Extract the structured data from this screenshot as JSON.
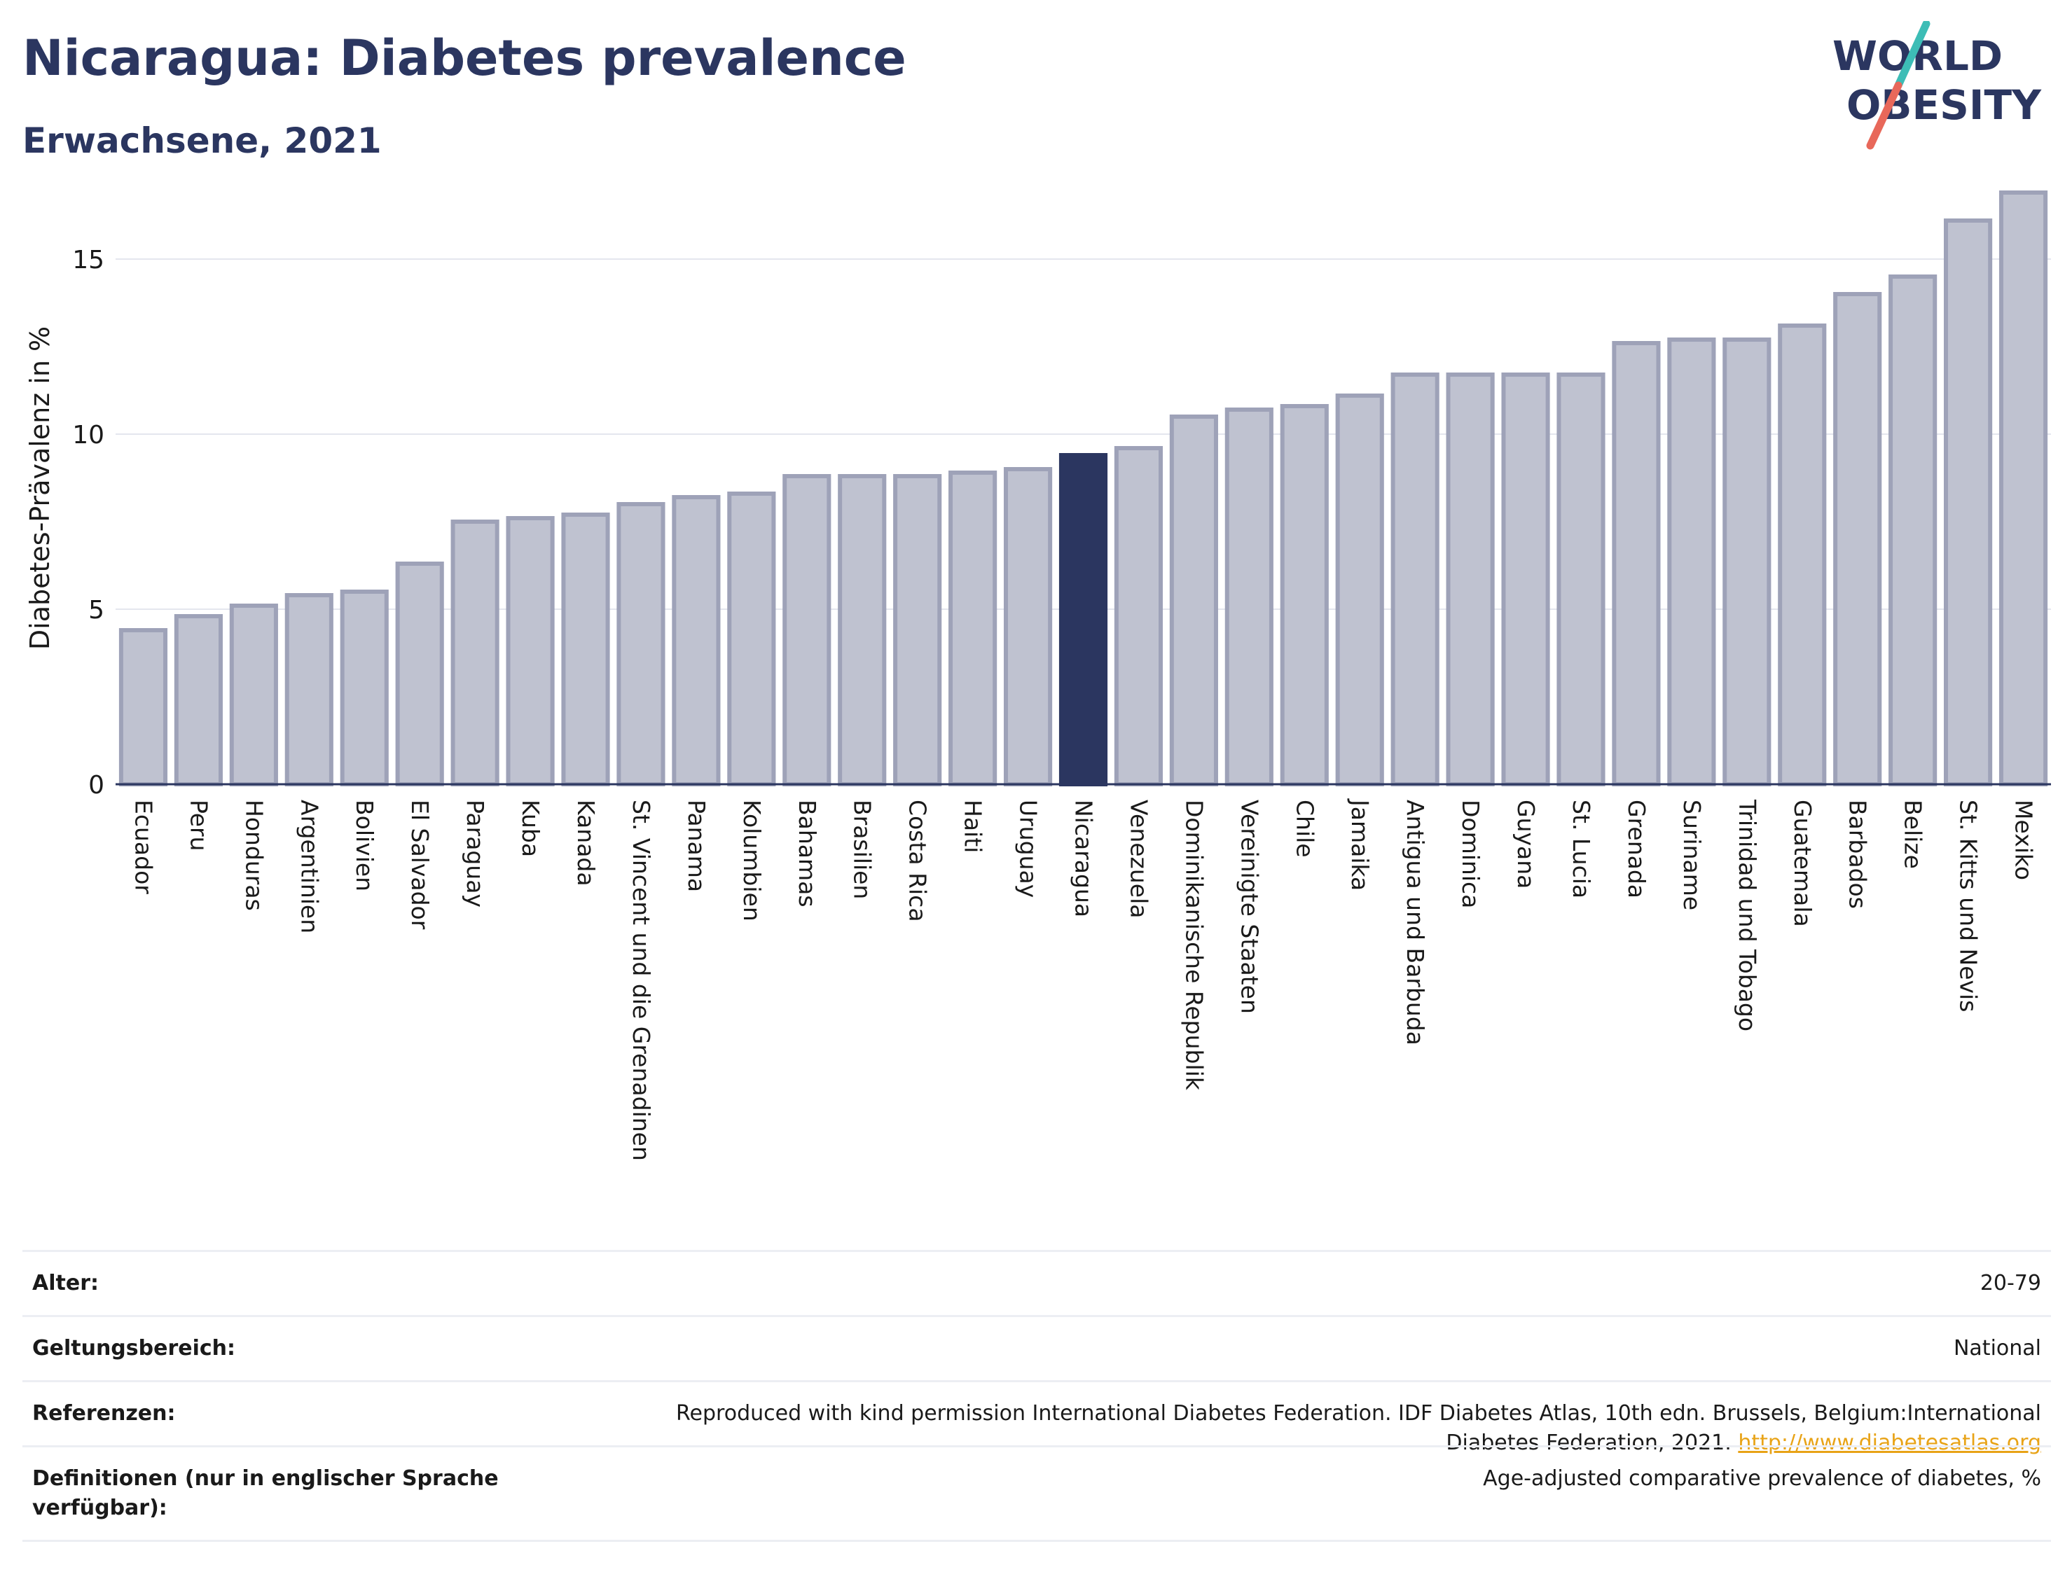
{
  "header": {
    "title": "Nicaragua: Diabetes prevalence",
    "subtitle": "Erwachsene, 2021"
  },
  "logo": {
    "line1": "WORLD",
    "line2": "OBESITY",
    "accent_teal": "#3dbdb6",
    "accent_red": "#e8685a"
  },
  "chart_data": {
    "type": "bar",
    "ylabel": "Diabetes-Prävalenz in %",
    "ylim": [
      0,
      17
    ],
    "yticks": [
      0,
      5,
      10,
      15
    ],
    "grid": true,
    "bar_color": "#bfc2d0",
    "bar_edge_color": "#9ea2b8",
    "highlight_color": "#2b3660",
    "highlight": "Nicaragua",
    "categories": [
      "Ecuador",
      "Peru",
      "Honduras",
      "Argentinien",
      "Bolivien",
      "El Salvador",
      "Paraguay",
      "Kuba",
      "Kanada",
      "St. Vincent und die Grenadinen",
      "Panama",
      "Kolumbien",
      "Bahamas",
      "Brasilien",
      "Costa Rica",
      "Haiti",
      "Uruguay",
      "Nicaragua",
      "Venezuela",
      "Dominikanische Republik",
      "Vereinigte Staaten",
      "Chile",
      "Jamaika",
      "Antigua und Barbuda",
      "Dominica",
      "Guyana",
      "St. Lucia",
      "Grenada",
      "Suriname",
      "Trinidad und Tobago",
      "Guatemala",
      "Barbados",
      "Belize",
      "St. Kitts und Nevis",
      "Mexiko"
    ],
    "values": [
      4.4,
      4.8,
      5.1,
      5.4,
      5.5,
      6.3,
      7.5,
      7.6,
      7.7,
      8.0,
      8.2,
      8.3,
      8.8,
      8.8,
      8.8,
      8.9,
      9.0,
      9.4,
      9.6,
      10.5,
      10.7,
      10.8,
      11.1,
      11.7,
      11.7,
      11.7,
      11.7,
      12.6,
      12.7,
      12.7,
      13.1,
      14.0,
      14.5,
      16.1,
      16.9
    ]
  },
  "meta": {
    "rows": [
      {
        "label": "Alter:",
        "value": "20-79"
      },
      {
        "label": "Geltungsbereich:",
        "value": "National"
      },
      {
        "label": "Referenzen:",
        "value": "Reproduced with kind permission International Diabetes Federation.  IDF Diabetes Atlas, 10th edn. Brussels, Belgium:International Diabetes Federation, 2021.",
        "link": "http://www.diabetesatlas.org"
      },
      {
        "label": "Definitionen (nur in englischer Sprache verfügbar):",
        "value": "Age-adjusted comparative prevalence of diabetes, %"
      }
    ]
  }
}
